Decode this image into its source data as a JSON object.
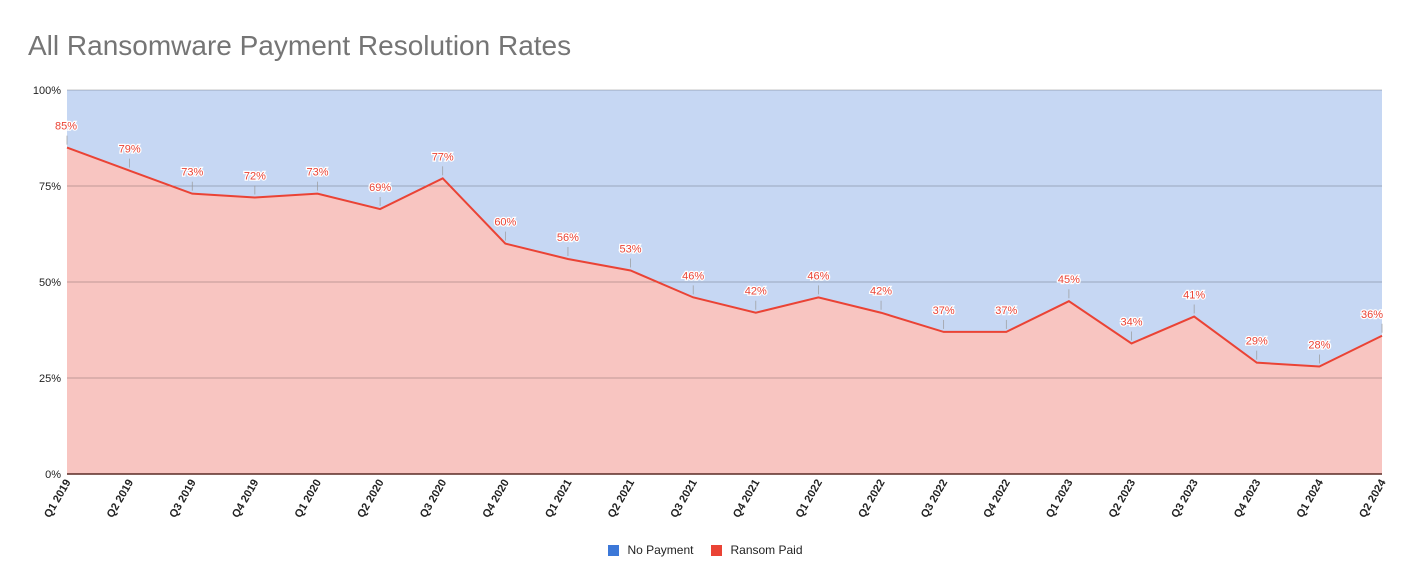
{
  "chart_data": {
    "type": "area",
    "stacked": "percent",
    "title": "All Ransomware Payment Resolution Rates",
    "xlabel": "",
    "ylabel": "",
    "ylim": [
      0,
      100
    ],
    "y_ticks": [
      "0%",
      "25%",
      "50%",
      "75%",
      "100%"
    ],
    "y_tick_values": [
      0,
      25,
      50,
      75,
      100
    ],
    "grid": true,
    "categories": [
      "Q1 2019",
      "Q2 2019",
      "Q3 2019",
      "Q4 2019",
      "Q1 2020",
      "Q2 2020",
      "Q3 2020",
      "Q4 2020",
      "Q1 2021",
      "Q2 2021",
      "Q3 2021",
      "Q4 2021",
      "Q1 2022",
      "Q2 2022",
      "Q3 2022",
      "Q4 2022",
      "Q1 2023",
      "Q2 2023",
      "Q3 2023",
      "Q4 2023",
      "Q1 2024",
      "Q2 2024"
    ],
    "series": [
      {
        "name": "Ransom Paid",
        "color": "#ea4335",
        "values": [
          85,
          79,
          73,
          72,
          73,
          69,
          77,
          60,
          56,
          53,
          46,
          42,
          46,
          42,
          37,
          37,
          45,
          34,
          41,
          29,
          28,
          36
        ]
      },
      {
        "name": "No Payment",
        "color": "#4a7fdc",
        "values": [
          15,
          21,
          27,
          28,
          27,
          31,
          23,
          40,
          44,
          47,
          54,
          58,
          54,
          58,
          63,
          63,
          55,
          66,
          59,
          71,
          72,
          64
        ]
      }
    ],
    "data_labels": [
      "85%",
      "79%",
      "73%",
      "72%",
      "73%",
      "69%",
      "77%",
      "60%",
      "56%",
      "53%",
      "46%",
      "42%",
      "46%",
      "42%",
      "37%",
      "37%",
      "45%",
      "34%",
      "41%",
      "29%",
      "28%",
      "36%"
    ],
    "legend_position": "bottom"
  }
}
